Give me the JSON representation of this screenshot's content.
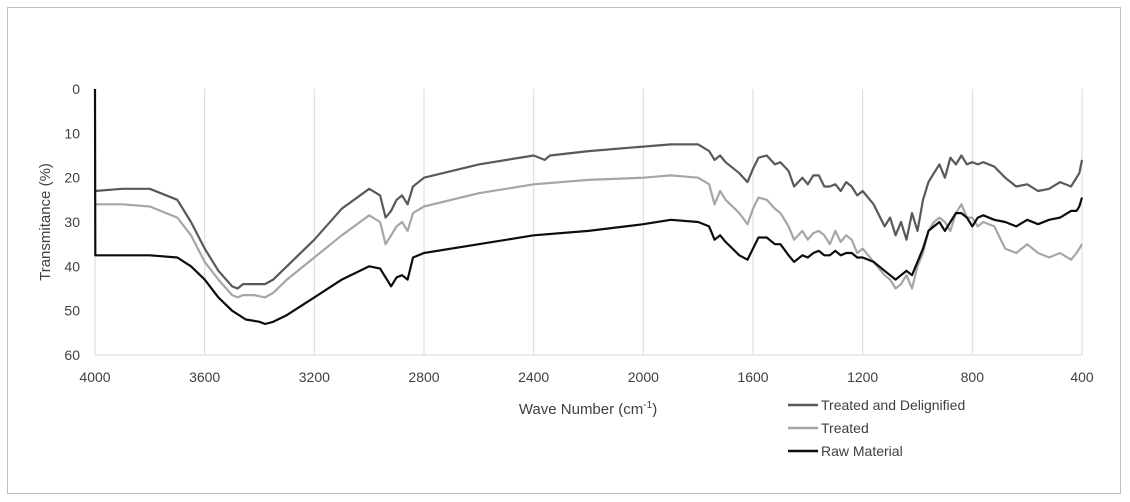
{
  "chart_data": {
    "type": "line",
    "title": "",
    "xlabel": "Wave Number (cm",
    "xlabel_sup": "-1",
    "xlabel_close": ")",
    "ylabel": "Transmitance (%)",
    "xlim": [
      4000,
      400
    ],
    "ylim": [
      0,
      60
    ],
    "x_reversed": true,
    "y_reversed": true,
    "x_ticks": [
      "4000",
      "3600",
      "3200",
      "2800",
      "2400",
      "2000",
      "1600",
      "1200",
      "800",
      "400"
    ],
    "y_ticks": [
      "0",
      "10",
      "20",
      "30",
      "40",
      "50",
      "60"
    ],
    "vertical_gridlines": true,
    "legend_position": "bottom-right",
    "series": [
      {
        "name": "Treated and Delignified",
        "color": "#595959",
        "x": [
          4000,
          3900,
          3800,
          3700,
          3650,
          3600,
          3550,
          3500,
          3480,
          3460,
          3420,
          3380,
          3350,
          3300,
          3200,
          3100,
          3000,
          2960,
          2940,
          2920,
          2900,
          2880,
          2860,
          2840,
          2800,
          2600,
          2400,
          2360,
          2340,
          2200,
          2000,
          1900,
          1800,
          1760,
          1740,
          1720,
          1700,
          1650,
          1620,
          1600,
          1580,
          1550,
          1520,
          1500,
          1470,
          1450,
          1420,
          1400,
          1380,
          1360,
          1340,
          1320,
          1300,
          1280,
          1260,
          1240,
          1220,
          1200,
          1160,
          1120,
          1100,
          1080,
          1060,
          1040,
          1020,
          1000,
          980,
          960,
          940,
          920,
          900,
          880,
          860,
          840,
          820,
          800,
          780,
          760,
          720,
          680,
          640,
          600,
          560,
          520,
          480,
          440,
          420,
          410,
          400
        ],
        "values": [
          23,
          22.5,
          22.5,
          25,
          30,
          36,
          41,
          44.5,
          45,
          44,
          44,
          44,
          43,
          40,
          34,
          27,
          22.5,
          24,
          29,
          27.5,
          25,
          24,
          26,
          22,
          20,
          17,
          15,
          16,
          15,
          14,
          13,
          12.5,
          12.5,
          14,
          16,
          15,
          16.5,
          19,
          21,
          18,
          15.5,
          15,
          17,
          16.5,
          18.5,
          22,
          20,
          21.5,
          19.5,
          19.5,
          22,
          22,
          21.5,
          23,
          21,
          22,
          24,
          23,
          26,
          31,
          29,
          33,
          30,
          34,
          28,
          32,
          25,
          21,
          19,
          17,
          20,
          15.5,
          17,
          15,
          17,
          16.5,
          17,
          16.5,
          17.5,
          20,
          22,
          21.5,
          23,
          22.5,
          21,
          22,
          20,
          19,
          16
        ]
      },
      {
        "name": "Treated",
        "color": "#a6a6a6",
        "x": [
          4000,
          3900,
          3800,
          3700,
          3650,
          3600,
          3550,
          3500,
          3480,
          3460,
          3420,
          3380,
          3350,
          3300,
          3200,
          3100,
          3000,
          2960,
          2940,
          2920,
          2900,
          2880,
          2860,
          2840,
          2800,
          2600,
          2400,
          2200,
          2000,
          1900,
          1800,
          1760,
          1740,
          1720,
          1700,
          1650,
          1620,
          1600,
          1580,
          1550,
          1520,
          1500,
          1470,
          1450,
          1420,
          1400,
          1380,
          1360,
          1340,
          1320,
          1300,
          1280,
          1260,
          1240,
          1220,
          1200,
          1160,
          1120,
          1100,
          1080,
          1060,
          1040,
          1020,
          1000,
          980,
          960,
          940,
          920,
          900,
          880,
          860,
          840,
          820,
          800,
          780,
          760,
          720,
          680,
          640,
          600,
          560,
          520,
          480,
          440,
          420,
          410,
          400
        ],
        "values": [
          26,
          26,
          26.5,
          29,
          33,
          39,
          43,
          46.5,
          47,
          46.5,
          46.5,
          47,
          46,
          43,
          38,
          33,
          28.5,
          30,
          35,
          33,
          31,
          30,
          32,
          28,
          26.5,
          23.5,
          21.5,
          20.5,
          20,
          19.5,
          20,
          21.5,
          26,
          23,
          25,
          28,
          30.5,
          27,
          24.5,
          25,
          27,
          28,
          31,
          34,
          32,
          34,
          32.5,
          32,
          33,
          35,
          32,
          34.5,
          33,
          34,
          37,
          36,
          39,
          42,
          43,
          45,
          44,
          42,
          45,
          40,
          37,
          32,
          30,
          29,
          30,
          32,
          28,
          26,
          29,
          29,
          31,
          30,
          31,
          36,
          37,
          35,
          37,
          38,
          37,
          38.5,
          37,
          36,
          35
        ]
      },
      {
        "name": "Raw Material",
        "color": "#0d0d0d",
        "x": [
          4000,
          3999,
          3900,
          3800,
          3700,
          3650,
          3600,
          3550,
          3500,
          3450,
          3400,
          3380,
          3350,
          3300,
          3200,
          3100,
          3000,
          2960,
          2940,
          2920,
          2900,
          2880,
          2860,
          2840,
          2800,
          2600,
          2400,
          2200,
          2000,
          1900,
          1800,
          1760,
          1740,
          1720,
          1700,
          1650,
          1620,
          1600,
          1580,
          1550,
          1520,
          1500,
          1470,
          1450,
          1420,
          1400,
          1380,
          1360,
          1340,
          1320,
          1300,
          1280,
          1260,
          1240,
          1220,
          1200,
          1160,
          1120,
          1100,
          1080,
          1060,
          1040,
          1020,
          1000,
          980,
          960,
          940,
          920,
          900,
          880,
          860,
          840,
          820,
          800,
          780,
          760,
          720,
          680,
          640,
          600,
          560,
          520,
          480,
          440,
          420,
          410,
          400
        ],
        "values": [
          0,
          37.5,
          37.5,
          37.5,
          38,
          40,
          43,
          47,
          50,
          52,
          52.5,
          53,
          52.5,
          51,
          47,
          43,
          40,
          40.5,
          42.5,
          44.5,
          42.5,
          42,
          43,
          38,
          37,
          35,
          33,
          32,
          30.5,
          29.5,
          30,
          31,
          34,
          33,
          34.5,
          37.5,
          38.5,
          36,
          33.5,
          33.5,
          35,
          35,
          37.5,
          39,
          37.5,
          38,
          37,
          36.5,
          37.5,
          37.5,
          36.5,
          37.5,
          37,
          37,
          38,
          38,
          39,
          41,
          42,
          43,
          42,
          41,
          42,
          39,
          36,
          32,
          31,
          30,
          32,
          30,
          28,
          28,
          29,
          31,
          29,
          28.5,
          29.5,
          30,
          31,
          29.5,
          30.5,
          29.5,
          29,
          27.5,
          27.5,
          26.5,
          24.5
        ]
      }
    ]
  }
}
